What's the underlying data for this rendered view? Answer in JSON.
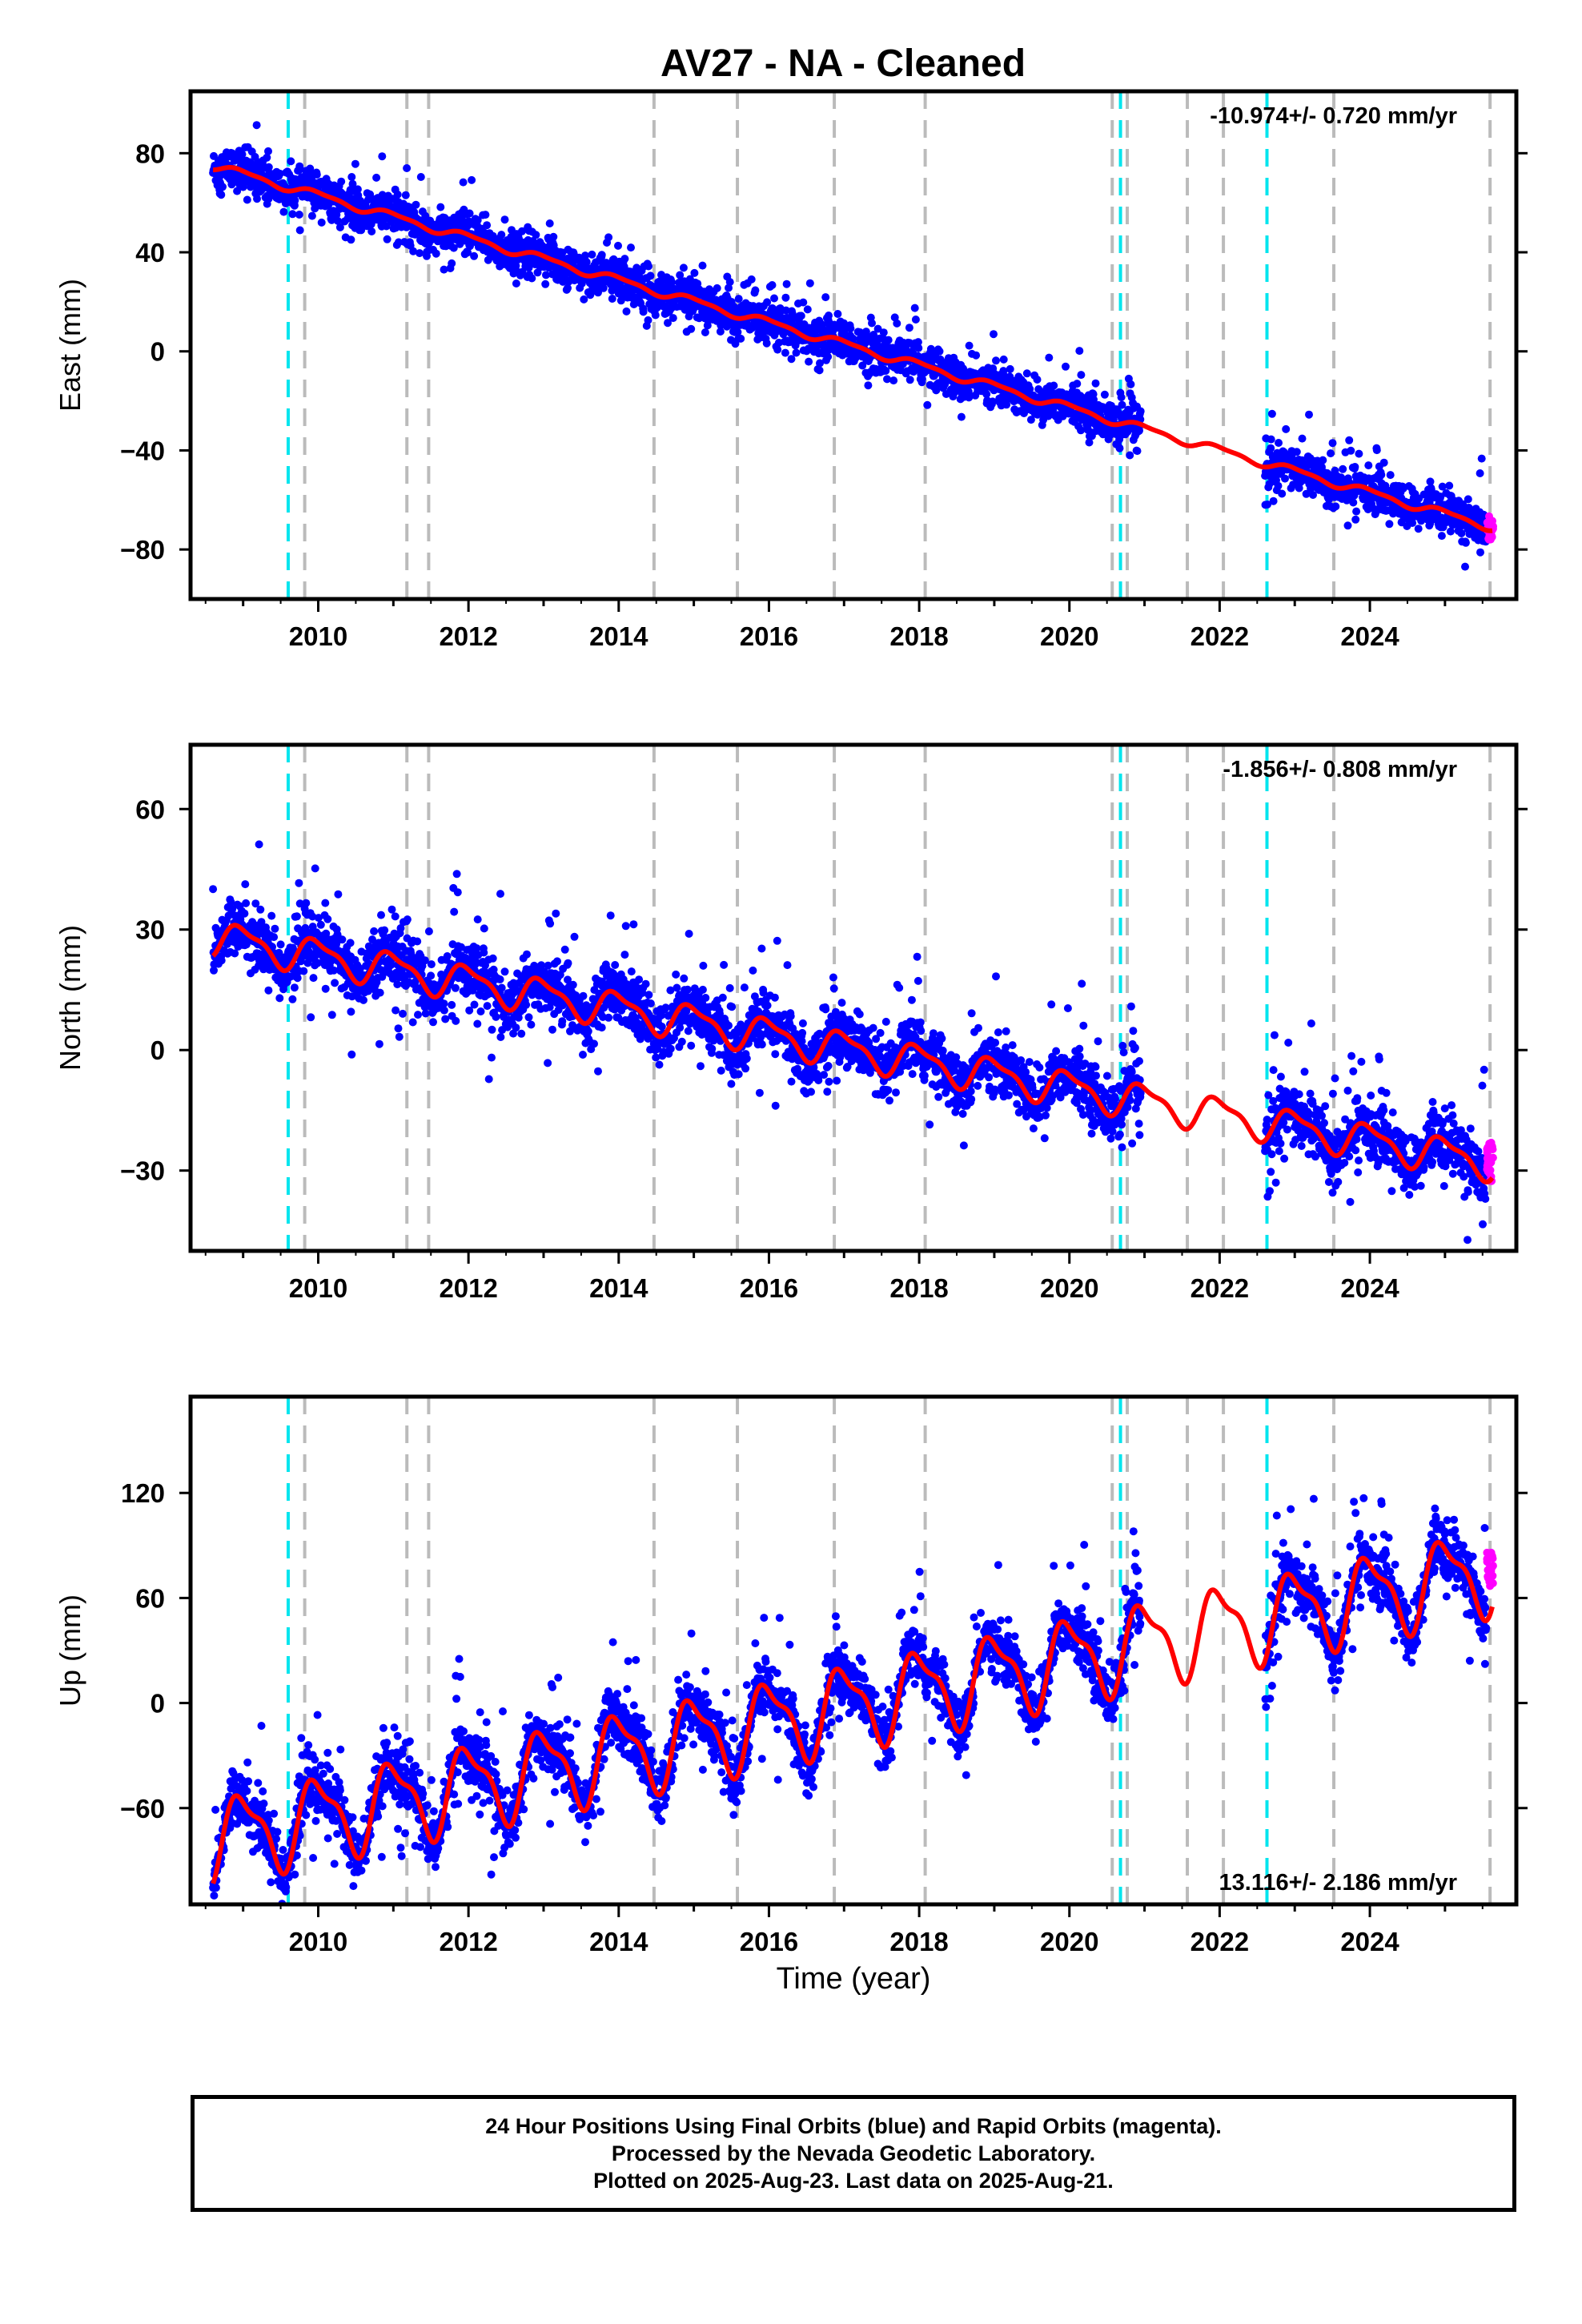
{
  "title": "AV27  - NA - Cleaned",
  "x_axis_label": "Time (year)",
  "footer": {
    "line1": "24 Hour Positions Using Final Orbits (blue) and Rapid Orbits (magenta).",
    "line2": "Processed by the Nevada Geodetic Laboratory.",
    "line3": "Plotted on 2025-Aug-23. Last data on 2025-Aug-21."
  },
  "colors": {
    "final_orbits": "#0000ff",
    "rapid_orbits": "#ff00ff",
    "model_fit": "#ff0000",
    "equipment_change_lines": "#bbbbbb",
    "earthquake_lines": "#00e5ee"
  },
  "chart_data": [
    {
      "type": "scatter",
      "ylabel": "East (mm)",
      "rate_label": "-10.974+/- 0.720 mm/yr",
      "xlim": [
        2008.3,
        2025.95
      ],
      "ylim": [
        -100,
        105
      ],
      "yticks": [
        -80,
        -40,
        0,
        40,
        80
      ],
      "xticks": [
        2010,
        2012,
        2014,
        2016,
        2018,
        2020,
        2022,
        2024
      ],
      "trend_endpoints": {
        "x": [
          2008.6,
          2025.63
        ],
        "y": [
          75,
          -71
        ]
      },
      "seasonal_amplitude": 1.5,
      "scatter_sigma": 4,
      "outlier_spread": 18,
      "rapid_orbit_range": [
        -76,
        -66
      ]
    },
    {
      "type": "scatter",
      "ylabel": "North (mm)",
      "rate_label": "-1.856+/- 0.808 mm/yr",
      "xlim": [
        2008.3,
        2025.95
      ],
      "ylim": [
        -50,
        76
      ],
      "yticks": [
        -30,
        0,
        30,
        60
      ],
      "xticks": [
        2010,
        2012,
        2014,
        2016,
        2018,
        2020,
        2022,
        2024
      ],
      "trend_endpoints": {
        "x": [
          2008.6,
          2025.63
        ],
        "y": [
          28,
          -28
        ]
      },
      "seasonal_amplitude": 4,
      "scatter_sigma": 3.5,
      "outlier_spread": 20,
      "rapid_orbit_range": [
        -33,
        -23
      ]
    },
    {
      "type": "scatter",
      "ylabel": "Up (mm)",
      "rate_label": "13.116+/- 2.186 mm/yr",
      "xlim": [
        2008.3,
        2025.95
      ],
      "ylim": [
        -115,
        175
      ],
      "yticks": [
        -60,
        0,
        60,
        120
      ],
      "xticks": [
        2010,
        2012,
        2014,
        2016,
        2018,
        2020,
        2022,
        2024
      ],
      "trend_endpoints": {
        "x": [
          2008.6,
          2025.63
        ],
        "y": [
          -78,
          76
        ]
      },
      "seasonal_amplitude": 22,
      "scatter_sigma": 8,
      "outlier_spread": 45,
      "rapid_orbit_range": [
        66,
        86
      ]
    }
  ],
  "event_lines": {
    "equipment_change_years": [
      2009.82,
      2011.18,
      2011.47,
      2014.47,
      2015.58,
      2016.87,
      2018.08,
      2020.57,
      2020.77,
      2021.57,
      2022.05,
      2023.52,
      2025.6
    ],
    "earthquake_years": [
      2009.6,
      2020.68,
      2022.63
    ]
  },
  "data_gaps": [
    [
      2020.95,
      2022.6
    ]
  ]
}
